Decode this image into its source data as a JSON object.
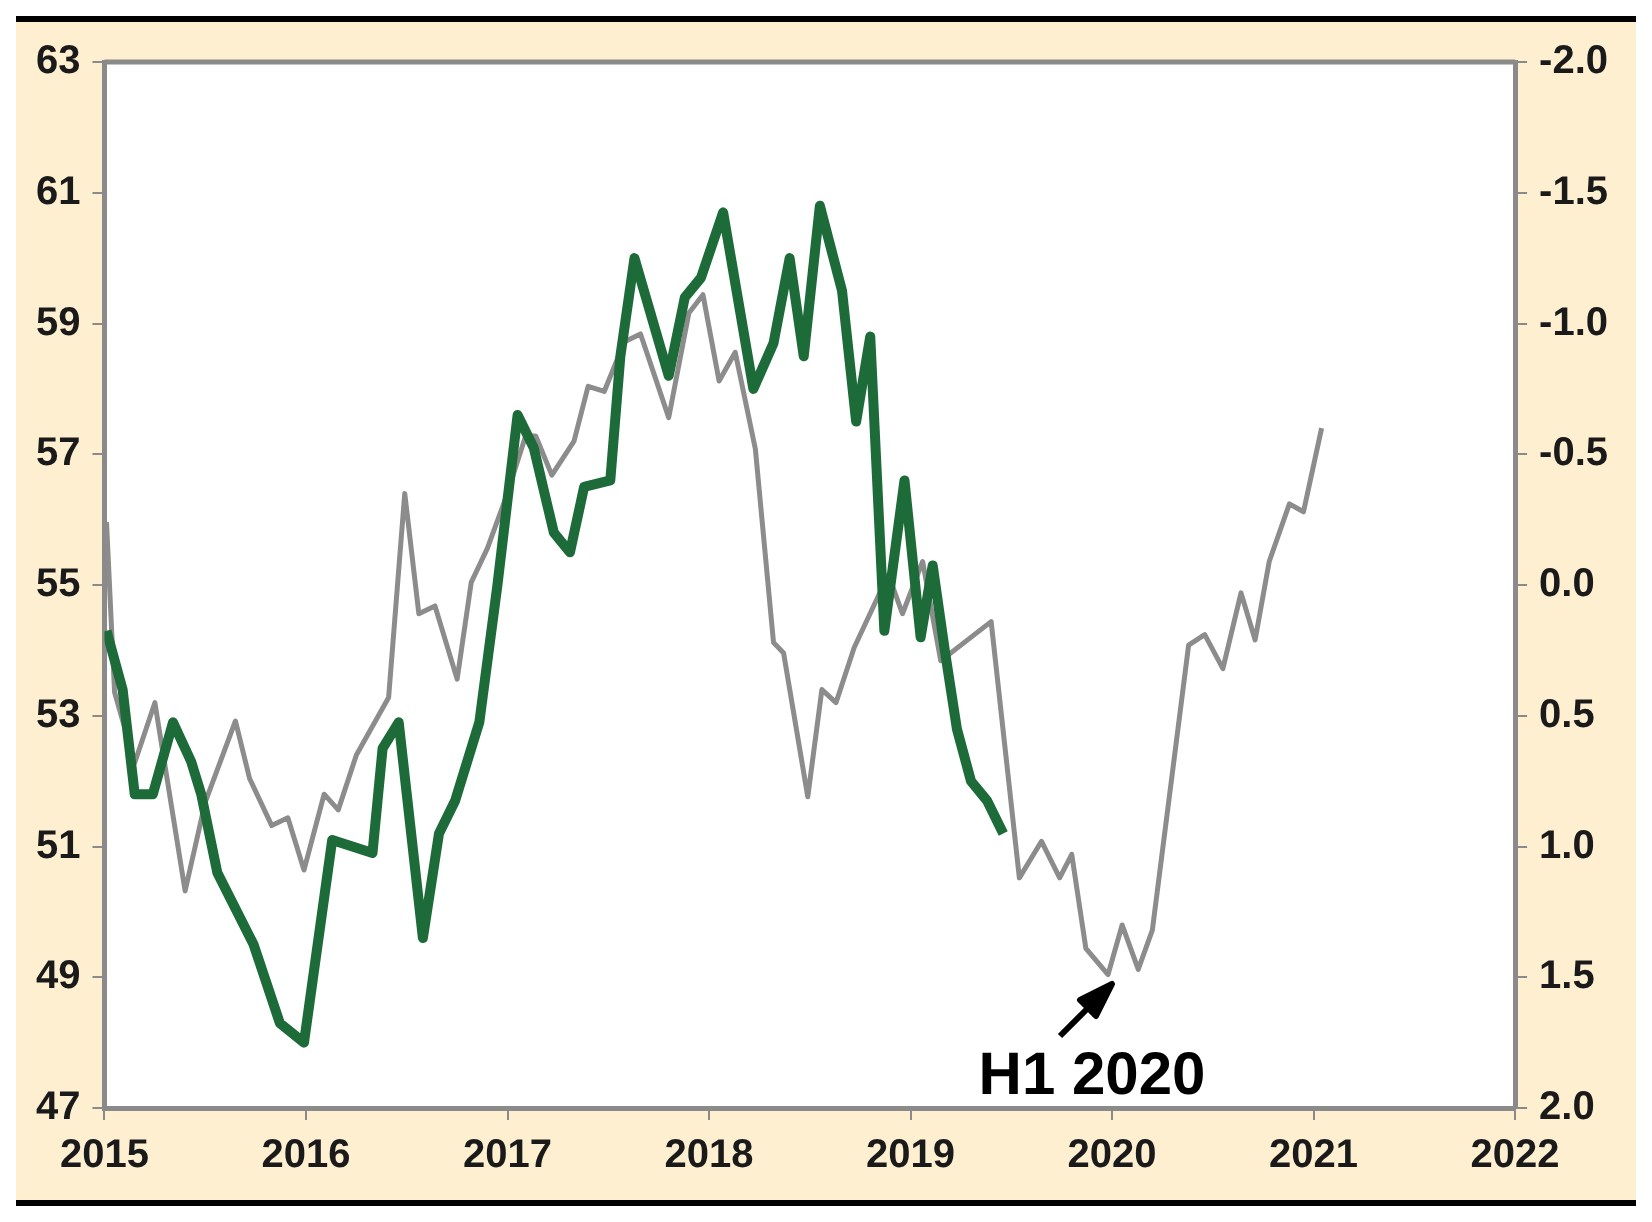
{
  "chart_data": {
    "type": "line",
    "xlim": [
      2015,
      2022
    ],
    "xticks": [
      2015,
      2016,
      2017,
      2018,
      2019,
      2020,
      2021,
      2022
    ],
    "ylim": [
      47,
      63
    ],
    "yticks": [
      47,
      49,
      51,
      53,
      55,
      57,
      59,
      61,
      63
    ],
    "y2lim": [
      2,
      -2
    ],
    "y2ticks": [
      {
        "value": 2,
        "label": "2.0"
      },
      {
        "value": 1.5,
        "label": "1.5"
      },
      {
        "value": 1,
        "label": "1.0"
      },
      {
        "value": 0.5,
        "label": "0.5"
      },
      {
        "value": 0,
        "label": "0.0"
      },
      {
        "value": -0.5,
        "label": "-0.5"
      },
      {
        "value": -1,
        "label": "-1.0"
      },
      {
        "value": -1.5,
        "label": "-1.5"
      },
      {
        "value": -2,
        "label": "-2.0"
      }
    ],
    "grid": false,
    "legend": false,
    "annotations": [
      {
        "text": "H1 2020",
        "x": 2020,
        "y": 49
      }
    ],
    "series": [
      {
        "color": "#1e6b3a",
        "x": [
          2015.01,
          2015.09,
          2015.15,
          2015.24,
          2015.34,
          2015.43,
          2015.48,
          2015.56,
          2015.74,
          2015.87,
          2015.99,
          2016.13,
          2016.23,
          2016.33,
          2016.38,
          2016.46,
          2016.58,
          2016.66,
          2016.74,
          2016.86,
          2016.95,
          2017.05,
          2017.13,
          2017.23,
          2017.31,
          2017.38,
          2017.51,
          2017.56,
          2017.63,
          2017.8,
          2017.88,
          2017.96,
          2018.07,
          2018.22,
          2018.32,
          2018.4,
          2018.47,
          2018.55,
          2018.66,
          2018.73,
          2018.8,
          2018.87,
          2018.97,
          2019.05,
          2019.11,
          2019.17,
          2019.23,
          2019.3,
          2019.38,
          2019.46
        ],
        "values": [
          54.3,
          53.4,
          51.8,
          51.8,
          52.9,
          52.3,
          51.8,
          50.6,
          49.5,
          48.3,
          48.0,
          51.1,
          51.0,
          50.9,
          52.5,
          52.9,
          49.6,
          51.2,
          51.7,
          52.9,
          55.0,
          57.6,
          57.1,
          55.8,
          55.5,
          56.5,
          56.6,
          58.5,
          60.0,
          58.2,
          59.4,
          59.7,
          60.7,
          58.0,
          58.7,
          60.0,
          58.5,
          60.8,
          59.5,
          57.5,
          58.8,
          54.3,
          56.6,
          54.2,
          55.3,
          54.0,
          52.8,
          52.0,
          51.7,
          51.2
        ]
      },
      {
        "color": "#8c8c8c",
        "axis": "y2",
        "x": [
          2015.01,
          2015.05,
          2015.15,
          2015.25,
          2015.4,
          2015.5,
          2015.65,
          2015.72,
          2015.83,
          2015.91,
          2015.99,
          2016.09,
          2016.16,
          2016.25,
          2016.41,
          2016.49,
          2016.56,
          2016.64,
          2016.75,
          2016.82,
          2016.9,
          2016.99,
          2017.09,
          2017.14,
          2017.22,
          2017.33,
          2017.4,
          2017.48,
          2017.58,
          2017.66,
          2017.8,
          2017.9,
          2017.97,
          2018.05,
          2018.13,
          2018.23,
          2018.32,
          2018.37,
          2018.49,
          2018.56,
          2018.63,
          2018.72,
          2018.89,
          2018.96,
          2019.06,
          2019.15,
          2019.4,
          2019.54,
          2019.65,
          2019.74,
          2019.8,
          2019.87,
          2019.98,
          2020.05,
          2020.13,
          2020.2,
          2020.38,
          2020.46,
          2020.55,
          2020.64,
          2020.71,
          2020.78,
          2020.88,
          2020.95,
          2021.04
        ],
        "values": [
          -0.24,
          0.41,
          0.68,
          0.45,
          1.17,
          0.83,
          0.52,
          0.74,
          0.92,
          0.89,
          1.09,
          0.8,
          0.86,
          0.65,
          0.43,
          -0.35,
          0.11,
          0.08,
          0.36,
          -0.01,
          -0.14,
          -0.33,
          -0.57,
          -0.57,
          -0.42,
          -0.55,
          -0.76,
          -0.74,
          -0.93,
          -0.96,
          -0.64,
          -1.04,
          -1.11,
          -0.78,
          -0.89,
          -0.52,
          0.22,
          0.26,
          0.81,
          0.4,
          0.45,
          0.24,
          -0.04,
          0.11,
          -0.09,
          0.29,
          0.14,
          1.12,
          0.98,
          1.12,
          1.03,
          1.39,
          1.49,
          1.3,
          1.47,
          1.32,
          0.23,
          0.19,
          0.32,
          0.03,
          0.21,
          -0.09,
          -0.31,
          -0.28,
          -0.6
        ]
      }
    ]
  }
}
